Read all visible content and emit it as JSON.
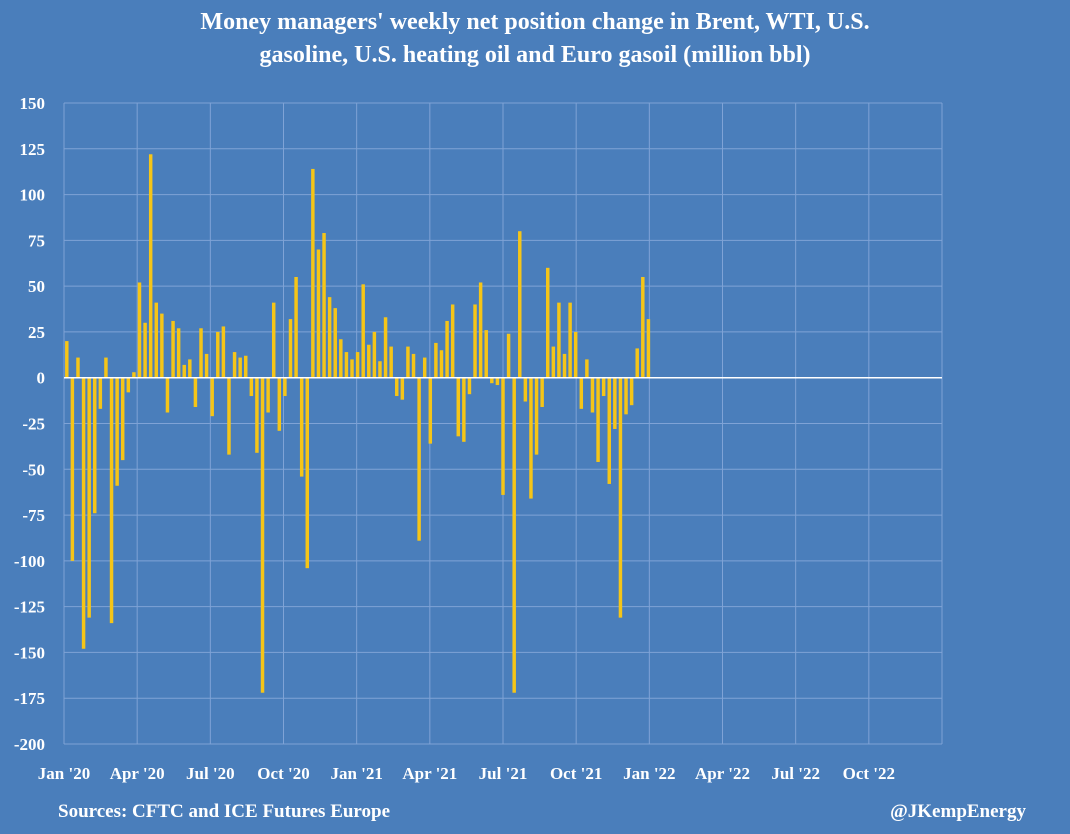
{
  "chart_data": {
    "type": "bar",
    "title_line1": "Money managers' weekly net position change in Brent, WTI, U.S.",
    "title_line2": "gasoline, U.S. heating oil and Euro gasoil (million bbl)",
    "xlabel": "",
    "ylabel": "",
    "ylim": [
      -200,
      150
    ],
    "yticks": [
      150,
      125,
      100,
      75,
      50,
      25,
      0,
      -25,
      -50,
      -75,
      -100,
      -125,
      -150,
      -175,
      -200
    ],
    "x_tick_labels": [
      "Jan '20",
      "Apr '20",
      "Jul '20",
      "Oct '20",
      "Jan '21",
      "Apr '21",
      "Jul '21",
      "Oct '21",
      "Jan '22",
      "Apr '22",
      "Jul '22",
      "Oct '22"
    ],
    "x_range_weeks": 157,
    "grid": true,
    "bar_color": "#f5c518",
    "gridline_color": "#7fa3d6",
    "series": [
      {
        "values": [
          20,
          -100,
          11,
          -148,
          -131,
          -74,
          -17,
          11,
          -134,
          -59,
          -45,
          -8,
          3,
          52,
          30,
          122,
          41,
          35,
          -19,
          31,
          27,
          7,
          10,
          -16,
          27,
          13,
          -21,
          25,
          28,
          -42,
          14,
          11,
          12,
          -10,
          -41,
          -172,
          -19,
          41,
          -29,
          -10,
          32,
          55,
          -54,
          -104,
          114,
          70,
          79,
          44,
          38,
          21,
          14,
          10,
          14,
          51,
          18,
          25,
          9,
          33,
          17,
          -10,
          -12,
          17,
          13,
          -89,
          11,
          -36,
          19,
          15,
          31,
          40,
          -32,
          -35,
          -9,
          40,
          52,
          26,
          -3,
          -4,
          -64,
          24,
          -172,
          80,
          -13,
          -66,
          -42,
          -16,
          60,
          17,
          41,
          13,
          41,
          25,
          -17,
          10,
          -19,
          -46,
          -10,
          -58,
          -28,
          -131,
          -20,
          -15,
          16,
          55,
          32
        ]
      }
    ]
  },
  "footer": {
    "sources": "Sources: CFTC and ICE Futures Europe",
    "handle": "@JKempEnergy"
  }
}
